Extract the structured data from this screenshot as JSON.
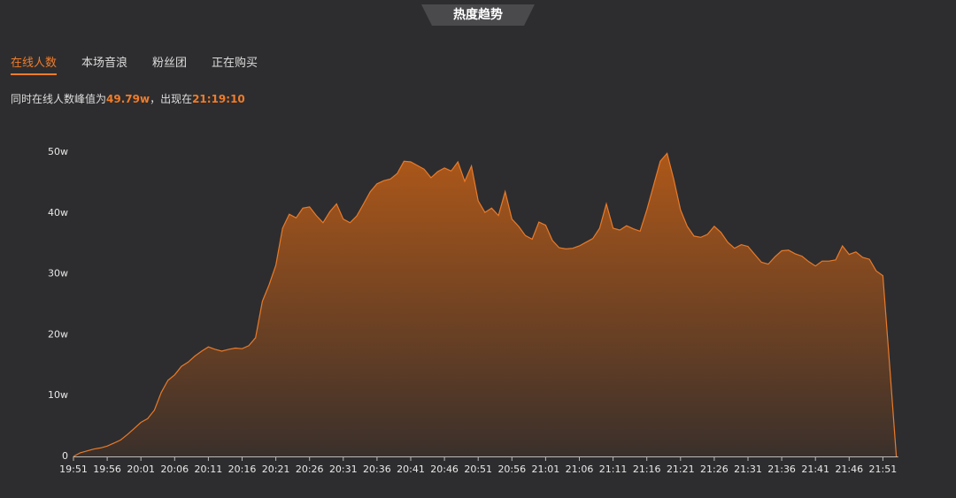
{
  "header": {
    "title": "热度趋势"
  },
  "tabs": [
    "在线人数",
    "本场音浪",
    "粉丝团",
    "正在购买"
  ],
  "summary": {
    "prefix": "同时在线人数峰值为",
    "peak": "49.79w",
    "middle": "，出现在",
    "time": "21:19:10"
  },
  "chart_data": {
    "type": "area",
    "x": [
      "19:51",
      "19:52",
      "19:53",
      "19:54",
      "19:55",
      "19:56",
      "19:57",
      "19:58",
      "19:59",
      "20:00",
      "20:01",
      "20:02",
      "20:03",
      "20:04",
      "20:05",
      "20:06",
      "20:07",
      "20:08",
      "20:09",
      "20:10",
      "20:11",
      "20:12",
      "20:13",
      "20:14",
      "20:15",
      "20:16",
      "20:17",
      "20:18",
      "20:19",
      "20:20",
      "20:21",
      "20:22",
      "20:23",
      "20:24",
      "20:25",
      "20:26",
      "20:27",
      "20:28",
      "20:29",
      "20:30",
      "20:31",
      "20:32",
      "20:33",
      "20:34",
      "20:35",
      "20:36",
      "20:37",
      "20:38",
      "20:39",
      "20:40",
      "20:41",
      "20:42",
      "20:43",
      "20:44",
      "20:45",
      "20:46",
      "20:47",
      "20:48",
      "20:49",
      "20:50",
      "20:51",
      "20:52",
      "20:53",
      "20:54",
      "20:55",
      "20:56",
      "20:57",
      "20:58",
      "20:59",
      "21:00",
      "21:01",
      "21:02",
      "21:03",
      "21:04",
      "21:05",
      "21:06",
      "21:07",
      "21:08",
      "21:09",
      "21:10",
      "21:11",
      "21:12",
      "21:13",
      "21:14",
      "21:15",
      "21:16",
      "21:17",
      "21:18",
      "21:19",
      "21:20",
      "21:21",
      "21:22",
      "21:23",
      "21:24",
      "21:25",
      "21:26",
      "21:27",
      "21:28",
      "21:29",
      "21:30",
      "21:31",
      "21:32",
      "21:33",
      "21:34",
      "21:35",
      "21:36",
      "21:37",
      "21:38",
      "21:39",
      "21:40",
      "21:41",
      "21:42",
      "21:43",
      "21:44",
      "21:45",
      "21:46",
      "21:47",
      "21:48",
      "21:49",
      "21:50",
      "21:51",
      "21:52",
      "21:53"
    ],
    "values": [
      0,
      0.6,
      0.9,
      1.2,
      1.4,
      1.7,
      2.2,
      2.7,
      3.6,
      4.6,
      5.6,
      6.2,
      7.6,
      10.5,
      12.5,
      13.4,
      14.8,
      15.5,
      16.5,
      17.3,
      18.0,
      17.6,
      17.3,
      17.6,
      17.8,
      17.7,
      18.2,
      19.5,
      25.5,
      28.2,
      31.4,
      37.5,
      39.8,
      39.2,
      40.8,
      41.0,
      39.6,
      38.4,
      40.2,
      41.5,
      39.0,
      38.4,
      39.5,
      41.5,
      43.5,
      44.8,
      45.3,
      45.6,
      46.5,
      48.5,
      48.4,
      47.8,
      47.2,
      45.8,
      46.8,
      47.4,
      46.9,
      48.4,
      45.2,
      47.7,
      42.0,
      40.1,
      40.8,
      39.6,
      43.5,
      39.0,
      37.8,
      36.3,
      35.7,
      38.5,
      38.0,
      35.5,
      34.3,
      34.1,
      34.2,
      34.6,
      35.2,
      35.8,
      37.5,
      41.5,
      37.5,
      37.2,
      37.9,
      37.4,
      37.0,
      40.5,
      44.5,
      48.5,
      49.79,
      45.5,
      40.5,
      37.8,
      36.2,
      36.0,
      36.5,
      37.8,
      36.8,
      35.2,
      34.2,
      34.8,
      34.5,
      33.2,
      31.9,
      31.6,
      32.8,
      33.8,
      33.9,
      33.3,
      32.9,
      32.0,
      31.3,
      32.1,
      32.1,
      32.3,
      34.6,
      33.2,
      33.6,
      32.7,
      32.4,
      30.5,
      29.7,
      15,
      0
    ],
    "xticks": [
      "19:51",
      "19:56",
      "20:01",
      "20:06",
      "20:11",
      "20:16",
      "20:21",
      "20:26",
      "20:31",
      "20:36",
      "20:41",
      "20:46",
      "20:51",
      "20:56",
      "21:01",
      "21:06",
      "21:11",
      "21:16",
      "21:21",
      "21:26",
      "21:31",
      "21:36",
      "21:41",
      "21:46",
      "21:51"
    ],
    "ylim": [
      0,
      50
    ],
    "yticks": [
      0,
      {
        "value": 10,
        "label": "10w"
      },
      {
        "value": 20,
        "label": "20w"
      },
      {
        "value": 30,
        "label": "30w"
      },
      {
        "value": 40,
        "label": "40w"
      },
      {
        "value": 50,
        "label": "50w"
      }
    ],
    "color": "#e87a2a",
    "grid": false
  }
}
